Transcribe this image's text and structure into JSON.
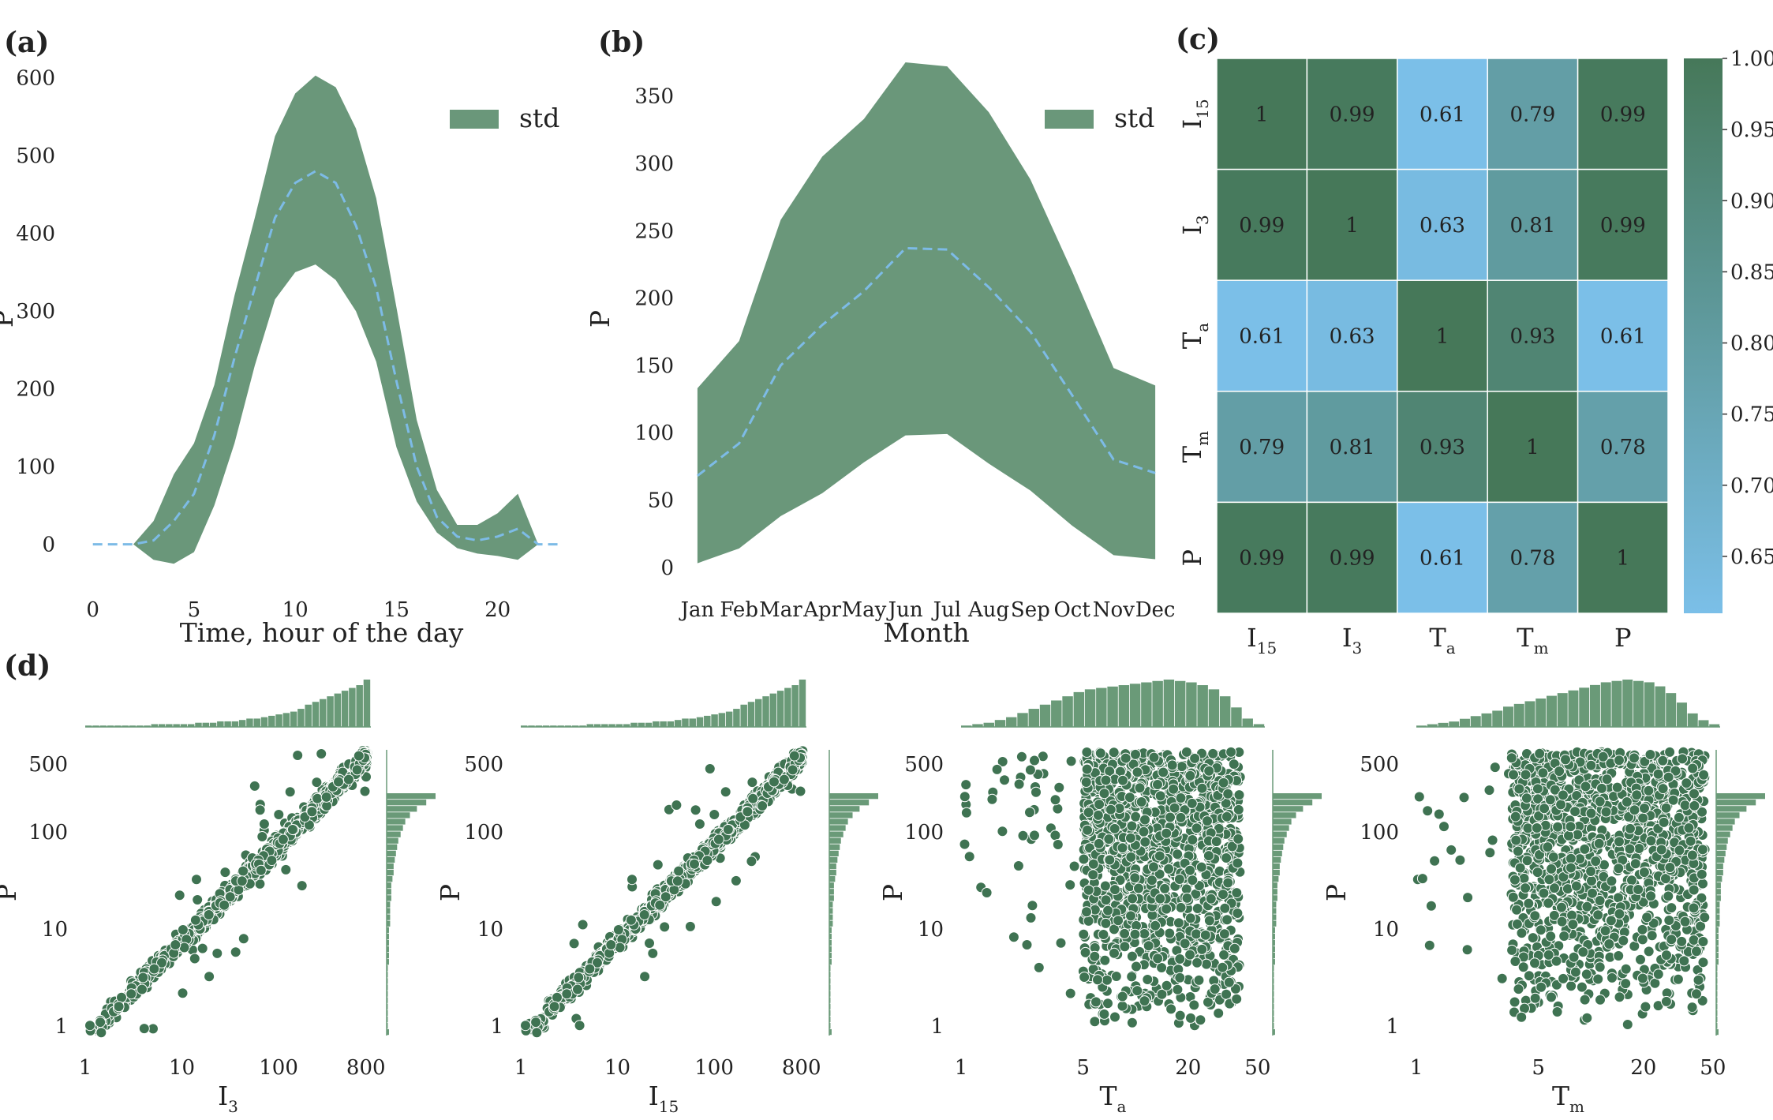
{
  "panel_labels": [
    "(a)",
    "(b)",
    "(c)",
    "(d)"
  ],
  "colors": {
    "band": "#5a8c6c",
    "mean_line": "#7dbbe6",
    "heat_high": "#467859",
    "heat_low": "#7bbfe8",
    "scatter": "#3f7352",
    "hist": "#6a9a78"
  },
  "chart_data": [
    {
      "id": "a",
      "type": "area",
      "xlabel": "Time, hour of the day",
      "ylabel": "P",
      "legend": "std",
      "legend_position": "top-right",
      "xlim": [
        -1,
        23.6
      ],
      "ylim": [
        -40,
        620
      ],
      "xticks": [
        0,
        5,
        10,
        15,
        20
      ],
      "yticks": [
        0,
        100,
        200,
        300,
        400,
        500,
        600
      ],
      "x": [
        0,
        1,
        2,
        3,
        4,
        5,
        6,
        7,
        8,
        9,
        10,
        11,
        12,
        13,
        14,
        15,
        16,
        17,
        18,
        19,
        20,
        21,
        22,
        23
      ],
      "mean": [
        0,
        0,
        0,
        5,
        30,
        65,
        140,
        240,
        330,
        420,
        465,
        480,
        465,
        410,
        330,
        210,
        100,
        35,
        10,
        5,
        10,
        20,
        0,
        0
      ],
      "upper": [
        0,
        0,
        0,
        30,
        90,
        130,
        205,
        320,
        420,
        525,
        580,
        603,
        588,
        535,
        445,
        305,
        160,
        70,
        25,
        25,
        40,
        65,
        0,
        0
      ],
      "lower": [
        0,
        0,
        0,
        -20,
        -25,
        -10,
        50,
        130,
        230,
        315,
        350,
        360,
        340,
        300,
        235,
        125,
        55,
        15,
        -5,
        -12,
        -15,
        -20,
        0,
        0
      ]
    },
    {
      "id": "b",
      "type": "area",
      "xlabel": "Month",
      "ylabel": "P",
      "legend": "std",
      "legend_position": "top-right",
      "xlim": [
        -0.15,
        11.15
      ],
      "ylim": [
        -6,
        375
      ],
      "categories": [
        "Jan",
        "Feb",
        "Mar",
        "Apr",
        "May",
        "Jun",
        "Jul",
        "Aug",
        "Sep",
        "Oct",
        "Nov",
        "Dec"
      ],
      "yticks": [
        0,
        50,
        100,
        150,
        200,
        250,
        300,
        350
      ],
      "mean": [
        68,
        92,
        150,
        180,
        205,
        237,
        236,
        208,
        175,
        128,
        80,
        70
      ],
      "upper": [
        133,
        168,
        258,
        305,
        333,
        375,
        372,
        338,
        288,
        220,
        148,
        135
      ],
      "lower": [
        3,
        14,
        38,
        55,
        78,
        98,
        99,
        77,
        57,
        31,
        9,
        6
      ]
    },
    {
      "id": "c",
      "type": "heatmap",
      "row_labels": [
        {
          "main": "I",
          "sub": "15"
        },
        {
          "main": "I",
          "sub": "3"
        },
        {
          "main": "T",
          "sub": "a"
        },
        {
          "main": "T",
          "sub": "m"
        },
        {
          "main": "P",
          "sub": ""
        }
      ],
      "col_labels": [
        {
          "main": "I",
          "sub": "15"
        },
        {
          "main": "I",
          "sub": "3"
        },
        {
          "main": "T",
          "sub": "a"
        },
        {
          "main": "T",
          "sub": "m"
        },
        {
          "main": "P",
          "sub": ""
        }
      ],
      "values": [
        [
          1,
          0.99,
          0.61,
          0.79,
          0.99
        ],
        [
          0.99,
          1,
          0.63,
          0.81,
          0.99
        ],
        [
          0.61,
          0.63,
          1,
          0.93,
          0.61
        ],
        [
          0.79,
          0.81,
          0.93,
          1,
          0.78
        ],
        [
          0.99,
          0.99,
          0.61,
          0.78,
          1
        ]
      ],
      "cell_text": [
        [
          "1",
          "0.99",
          "0.61",
          "0.79",
          "0.99"
        ],
        [
          "0.99",
          "1",
          "0.63",
          "0.81",
          "0.99"
        ],
        [
          "0.61",
          "0.63",
          "1",
          "0.93",
          "0.61"
        ],
        [
          "0.79",
          "0.81",
          "0.93",
          "1",
          "0.78"
        ],
        [
          "0.99",
          "0.99",
          "0.61",
          "0.78",
          "1"
        ]
      ],
      "colorbar_range": [
        0.61,
        1.0
      ],
      "colorbar_ticks": [
        "1.00",
        "0.95",
        "0.90",
        "0.85",
        "0.80",
        "0.75",
        "0.70",
        "0.65"
      ],
      "colorbar_tick_values": [
        1.0,
        0.95,
        0.9,
        0.85,
        0.8,
        0.75,
        0.7,
        0.65
      ]
    },
    {
      "id": "d1",
      "type": "scatter",
      "xlabel": {
        "main": "I",
        "sub": "3"
      },
      "ylabel": "P",
      "xscale": "log",
      "yscale": "log",
      "xlim": [
        1,
        900
      ],
      "ylim": [
        0.8,
        700
      ],
      "xticks": [
        "1",
        "10",
        "100",
        "800"
      ],
      "xtick_values": [
        1,
        10,
        100,
        800
      ],
      "yticks": [
        "1",
        "10",
        "100",
        "500"
      ],
      "ytick_values": [
        1,
        10,
        100,
        500
      ],
      "relation": "proportional",
      "top_hist": [
        1,
        1,
        1,
        1,
        1,
        1,
        1,
        1,
        1,
        2,
        2,
        2,
        2,
        2,
        2,
        3,
        3,
        3,
        4,
        4,
        4,
        5,
        6,
        6,
        7,
        8,
        9,
        10,
        11,
        13,
        16,
        18,
        20,
        22,
        24,
        26,
        28,
        30,
        34
      ],
      "right_hist": [
        2,
        1,
        1,
        1,
        1,
        1,
        1,
        1,
        1,
        1,
        1,
        2,
        2,
        2,
        2,
        2,
        2,
        3,
        3,
        3,
        3,
        4,
        4,
        4,
        5,
        6,
        6,
        7,
        8,
        9,
        10,
        12,
        14,
        16,
        20,
        26,
        34,
        42
      ]
    },
    {
      "id": "d2",
      "type": "scatter",
      "xlabel": {
        "main": "I",
        "sub": "15"
      },
      "ylabel": "P",
      "xscale": "log",
      "yscale": "log",
      "xlim": [
        1,
        900
      ],
      "ylim": [
        0.8,
        700
      ],
      "xticks": [
        "1",
        "10",
        "100",
        "800"
      ],
      "xtick_values": [
        1,
        10,
        100,
        800
      ],
      "yticks": [
        "1",
        "10",
        "100",
        "500"
      ],
      "ytick_values": [
        1,
        10,
        100,
        500
      ],
      "relation": "proportional",
      "top_hist": [
        1,
        1,
        1,
        1,
        1,
        1,
        1,
        1,
        1,
        2,
        2,
        2,
        2,
        2,
        2,
        3,
        3,
        3,
        4,
        4,
        4,
        5,
        6,
        6,
        7,
        8,
        9,
        10,
        11,
        13,
        16,
        18,
        20,
        22,
        24,
        26,
        28,
        30,
        34
      ],
      "right_hist": [
        2,
        1,
        1,
        1,
        1,
        1,
        1,
        1,
        1,
        1,
        1,
        2,
        2,
        2,
        2,
        2,
        2,
        3,
        3,
        3,
        3,
        4,
        4,
        4,
        5,
        6,
        6,
        7,
        8,
        9,
        10,
        12,
        14,
        16,
        20,
        26,
        34,
        42
      ]
    },
    {
      "id": "d3",
      "type": "scatter",
      "xlabel": {
        "main": "T",
        "sub": "a"
      },
      "ylabel": "P",
      "xscale": "log",
      "yscale": "log",
      "xlim": [
        1,
        55
      ],
      "ylim": [
        0.8,
        700
      ],
      "xticks": [
        "1",
        "5",
        "20",
        "50"
      ],
      "xtick_values": [
        1,
        5,
        20,
        50
      ],
      "yticks": [
        "1",
        "10",
        "100",
        "500"
      ],
      "ytick_values": [
        1,
        10,
        100,
        500
      ],
      "relation": "spread",
      "top_hist": [
        1,
        2,
        3,
        5,
        7,
        10,
        13,
        16,
        19,
        22,
        25,
        27,
        28,
        29,
        30,
        31,
        32,
        33,
        34,
        33,
        32,
        30,
        27,
        22,
        14,
        6,
        2
      ],
      "right_hist": [
        2,
        1,
        1,
        1,
        1,
        1,
        1,
        1,
        1,
        1,
        1,
        2,
        2,
        2,
        2,
        2,
        2,
        3,
        3,
        3,
        3,
        4,
        4,
        4,
        5,
        6,
        6,
        7,
        8,
        9,
        10,
        12,
        14,
        16,
        20,
        26,
        34,
        42
      ]
    },
    {
      "id": "d4",
      "type": "scatter",
      "xlabel": {
        "main": "T",
        "sub": "m"
      },
      "ylabel": "P",
      "xscale": "log",
      "yscale": "log",
      "xlim": [
        1,
        55
      ],
      "ylim": [
        0.8,
        700
      ],
      "xticks": [
        "1",
        "5",
        "20",
        "50"
      ],
      "xtick_values": [
        1,
        5,
        20,
        50
      ],
      "yticks": [
        "1",
        "10",
        "100",
        "500"
      ],
      "ytick_values": [
        1,
        10,
        100,
        500
      ],
      "relation": "spread",
      "top_hist": [
        1,
        2,
        3,
        4,
        6,
        8,
        10,
        12,
        15,
        17,
        19,
        21,
        23,
        25,
        27,
        29,
        31,
        33,
        34,
        35,
        34,
        33,
        30,
        25,
        18,
        10,
        5,
        2
      ],
      "right_hist": [
        2,
        1,
        1,
        1,
        1,
        1,
        1,
        1,
        1,
        1,
        1,
        2,
        2,
        2,
        2,
        2,
        2,
        3,
        3,
        3,
        3,
        4,
        4,
        4,
        5,
        6,
        6,
        7,
        8,
        9,
        10,
        12,
        14,
        16,
        20,
        26,
        34,
        42
      ]
    }
  ]
}
